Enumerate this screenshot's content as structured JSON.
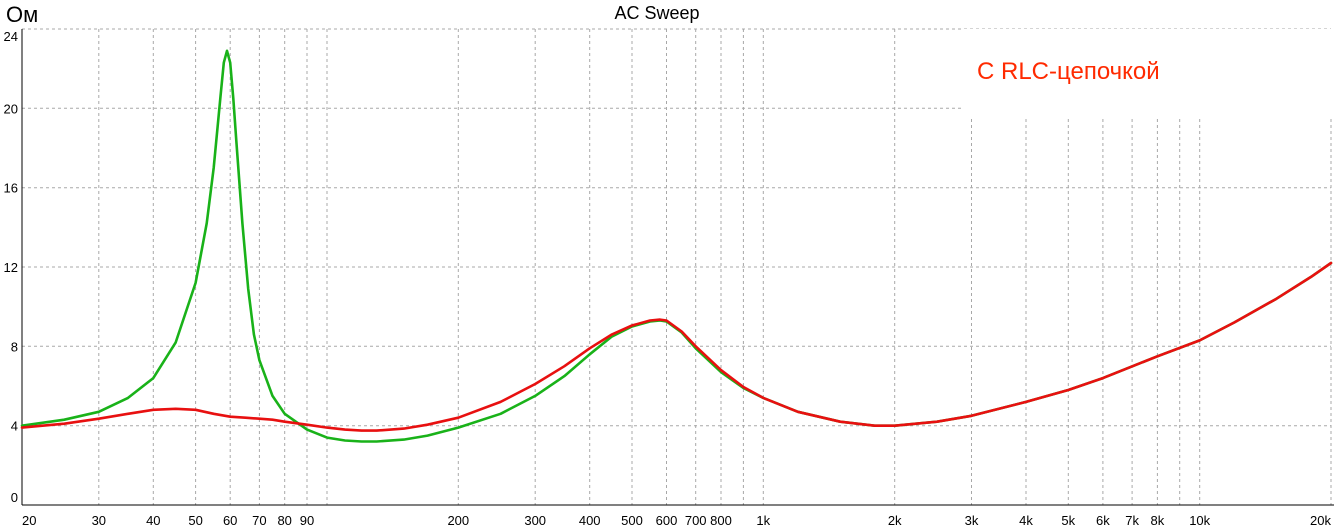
{
  "chart_data": {
    "type": "line",
    "title": "AC Sweep",
    "ylabel": "Ом",
    "annotation": "С RLC-цепочкой",
    "annotation_color": "#ff2a00",
    "x_scale": "log",
    "xlim": [
      20,
      20000
    ],
    "ylim": [
      0,
      24
    ],
    "grid": true,
    "x_ticks": [
      {
        "value": 20,
        "label": "20"
      },
      {
        "value": 30,
        "label": "30"
      },
      {
        "value": 40,
        "label": "40"
      },
      {
        "value": 50,
        "label": "50"
      },
      {
        "value": 60,
        "label": "60"
      },
      {
        "value": 70,
        "label": "70"
      },
      {
        "value": 80,
        "label": "80"
      },
      {
        "value": 90,
        "label": "90"
      },
      {
        "value": 200,
        "label": "200"
      },
      {
        "value": 300,
        "label": "300"
      },
      {
        "value": 400,
        "label": "400"
      },
      {
        "value": 500,
        "label": "500"
      },
      {
        "value": 600,
        "label": "600"
      },
      {
        "value": 700,
        "label": "700"
      },
      {
        "value": 800,
        "label": "800"
      },
      {
        "value": 1000,
        "label": "1k"
      },
      {
        "value": 2000,
        "label": "2k"
      },
      {
        "value": 3000,
        "label": "3k"
      },
      {
        "value": 4000,
        "label": "4k"
      },
      {
        "value": 5000,
        "label": "5k"
      },
      {
        "value": 6000,
        "label": "6k"
      },
      {
        "value": 7000,
        "label": "7k"
      },
      {
        "value": 8000,
        "label": "8k"
      },
      {
        "value": 10000,
        "label": "10k"
      },
      {
        "value": 20000,
        "label": "20k"
      }
    ],
    "x_grid": [
      20,
      30,
      40,
      50,
      60,
      70,
      80,
      90,
      100,
      200,
      300,
      400,
      500,
      600,
      700,
      800,
      900,
      1000,
      2000,
      3000,
      4000,
      5000,
      6000,
      7000,
      8000,
      9000,
      10000,
      20000
    ],
    "y_ticks": [
      0,
      4,
      8,
      12,
      16,
      20,
      24
    ],
    "series": [
      {
        "color": "#19b219",
        "x": [
          20,
          25,
          30,
          35,
          40,
          45,
          50,
          53,
          55,
          57,
          58,
          59,
          60,
          61,
          62,
          64,
          66,
          68,
          70,
          75,
          80,
          90,
          100,
          110,
          120,
          130,
          150,
          170,
          200,
          250,
          300,
          350,
          400,
          450,
          500,
          550,
          580,
          600,
          650,
          700,
          800,
          900,
          1000,
          1200,
          1500,
          1800,
          2000,
          2500,
          3000,
          4000,
          5000,
          6000,
          8000,
          10000,
          12000,
          15000,
          18000,
          20000
        ],
        "y": [
          4.0,
          4.3,
          4.7,
          5.4,
          6.4,
          8.2,
          11.2,
          14.2,
          17.0,
          20.6,
          22.3,
          22.9,
          22.3,
          20.5,
          18.3,
          14.2,
          10.9,
          8.6,
          7.3,
          5.5,
          4.6,
          3.8,
          3.4,
          3.25,
          3.2,
          3.2,
          3.3,
          3.5,
          3.9,
          4.6,
          5.5,
          6.5,
          7.6,
          8.5,
          9.0,
          9.25,
          9.3,
          9.25,
          8.7,
          7.9,
          6.7,
          5.9,
          5.4,
          4.7,
          4.2,
          4.0,
          4.0,
          4.2,
          4.5,
          5.2,
          5.8,
          6.4,
          7.5,
          8.3,
          9.2,
          10.4,
          11.5,
          12.2
        ]
      },
      {
        "color": "#e81010",
        "x": [
          20,
          25,
          30,
          35,
          40,
          45,
          50,
          55,
          60,
          65,
          70,
          75,
          80,
          90,
          100,
          110,
          120,
          130,
          150,
          170,
          200,
          250,
          300,
          350,
          400,
          450,
          500,
          550,
          580,
          600,
          650,
          700,
          800,
          900,
          1000,
          1200,
          1500,
          1800,
          2000,
          2500,
          3000,
          4000,
          5000,
          6000,
          8000,
          10000,
          12000,
          15000,
          18000,
          20000
        ],
        "y": [
          3.9,
          4.1,
          4.35,
          4.6,
          4.8,
          4.85,
          4.8,
          4.6,
          4.45,
          4.4,
          4.35,
          4.3,
          4.2,
          4.05,
          3.9,
          3.8,
          3.75,
          3.75,
          3.85,
          4.05,
          4.4,
          5.2,
          6.1,
          7.0,
          7.9,
          8.6,
          9.05,
          9.3,
          9.35,
          9.3,
          8.75,
          8.0,
          6.8,
          5.95,
          5.4,
          4.7,
          4.2,
          4.0,
          4.0,
          4.2,
          4.5,
          5.2,
          5.8,
          6.4,
          7.5,
          8.3,
          9.2,
          10.4,
          11.5,
          12.2
        ]
      }
    ]
  }
}
